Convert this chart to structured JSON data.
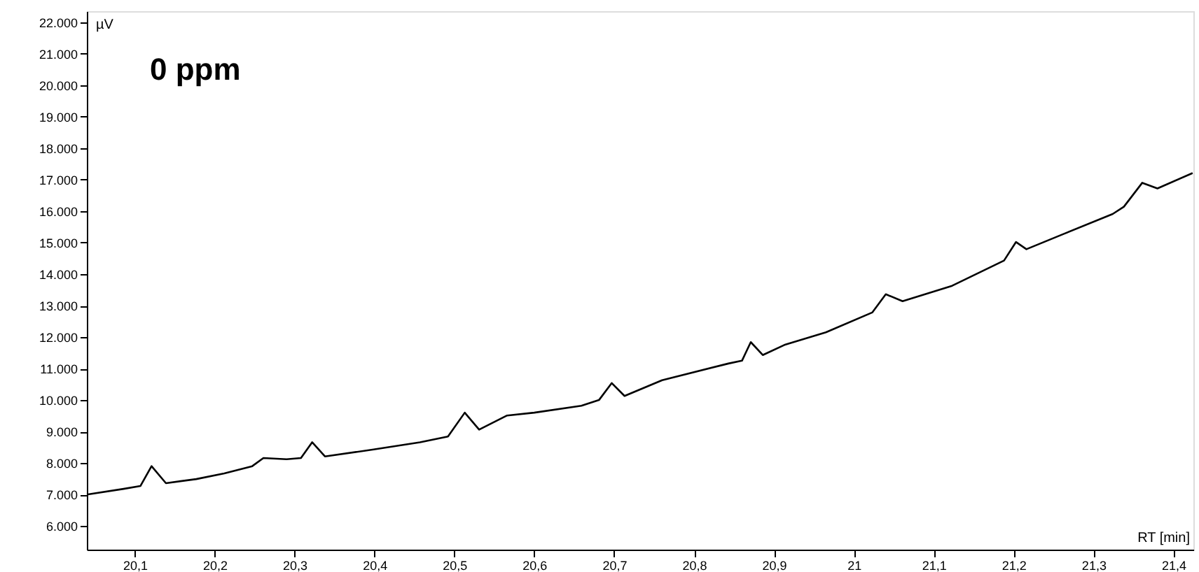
{
  "chart_data": {
    "type": "line",
    "xlabel": "RT [min]",
    "ylabel": "µV",
    "annotations": [
      "0 ppm"
    ],
    "x": [
      20.04,
      20.086,
      20.107,
      20.121,
      20.139,
      20.177,
      20.212,
      20.247,
      20.261,
      20.29,
      20.308,
      20.322,
      20.338,
      20.399,
      20.457,
      20.492,
      20.513,
      20.531,
      20.566,
      20.6,
      20.659,
      20.681,
      20.697,
      20.713,
      20.76,
      20.843,
      20.86,
      20.871,
      20.886,
      20.913,
      20.965,
      21.023,
      21.04,
      21.061,
      21.123,
      21.188,
      21.203,
      21.216,
      21.263,
      21.324,
      21.338,
      21.361,
      21.38,
      21.424
    ],
    "series": [
      {
        "color": "#000000",
        "values": [
          7000,
          7180,
          7270,
          7900,
          7360,
          7490,
          7670,
          7900,
          8160,
          8120,
          8160,
          8660,
          8210,
          8430,
          8660,
          8840,
          9600,
          9060,
          9510,
          9600,
          9820,
          10000,
          10540,
          10130,
          10630,
          11160,
          11250,
          11840,
          11430,
          11750,
          12150,
          12780,
          13360,
          13140,
          13630,
          14430,
          15020,
          14790,
          15280,
          15910,
          16140,
          16900,
          16720,
          17210
        ]
      }
    ],
    "xlim": [
      20.04,
      21.425
    ],
    "ylim": [
      5250,
      22350
    ],
    "xticks": [
      {
        "value": 20.1,
        "label": "20,1"
      },
      {
        "value": 20.2,
        "label": "20,2"
      },
      {
        "value": 20.3,
        "label": "20,3"
      },
      {
        "value": 20.4,
        "label": "20,4"
      },
      {
        "value": 20.5,
        "label": "20,5"
      },
      {
        "value": 20.6,
        "label": "20,6"
      },
      {
        "value": 20.7,
        "label": "20,7"
      },
      {
        "value": 20.8,
        "label": "20,8"
      },
      {
        "value": 20.9,
        "label": "20,9"
      },
      21,
      {
        "value": 21.1,
        "label": "21,1"
      },
      {
        "value": 21.2,
        "label": "21,2"
      },
      {
        "value": 21.3,
        "label": "21,3"
      },
      {
        "value": 21.4,
        "label": "21,4"
      }
    ],
    "yticks": [
      {
        "value": 6000,
        "label": "6.000"
      },
      {
        "value": 7000,
        "label": "7.000"
      },
      {
        "value": 8000,
        "label": "8.000"
      },
      {
        "value": 9000,
        "label": "9.000"
      },
      {
        "value": 10000,
        "label": "10.000"
      },
      {
        "value": 11000,
        "label": "11.000"
      },
      {
        "value": 12000,
        "label": "12.000"
      },
      {
        "value": 13000,
        "label": "13.000"
      },
      {
        "value": 14000,
        "label": "14.000"
      },
      {
        "value": 15000,
        "label": "15.000"
      },
      {
        "value": 16000,
        "label": "16.000"
      },
      {
        "value": 17000,
        "label": "17.000"
      },
      {
        "value": 18000,
        "label": "18.000"
      },
      {
        "value": 19000,
        "label": "19.000"
      },
      {
        "value": 20000,
        "label": "20.000"
      },
      {
        "value": 21000,
        "label": "21.000"
      },
      {
        "value": 22000,
        "label": "22.000"
      }
    ],
    "grid": false,
    "marker": "none",
    "line_style": "solid"
  }
}
